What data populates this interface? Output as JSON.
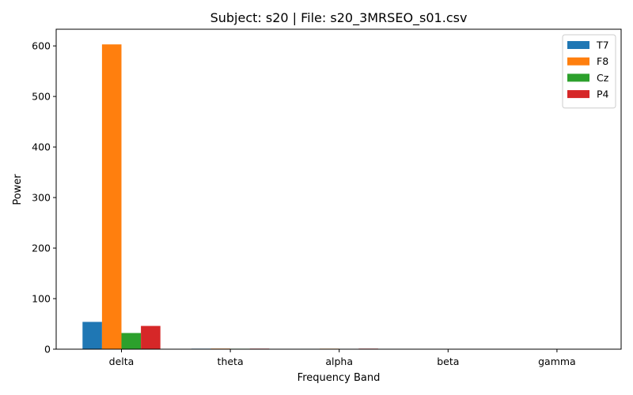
{
  "chart_data": {
    "type": "bar",
    "title": "Subject: s20 | File: s20_3MRSEO_s01.csv",
    "xlabel": "Frequency Band",
    "ylabel": "Power",
    "categories": [
      "delta",
      "theta",
      "alpha",
      "beta",
      "gamma"
    ],
    "ylim": [
      0,
      633
    ],
    "yticks": [
      0,
      100,
      200,
      300,
      400,
      500,
      600
    ],
    "grid": false,
    "legend_position": "top-right",
    "series": [
      {
        "name": "T7",
        "color": "#1f77b4",
        "values": [
          54,
          1.0,
          0.8,
          0.2,
          0.1
        ]
      },
      {
        "name": "F8",
        "color": "#ff7f0e",
        "values": [
          603,
          1.2,
          1.0,
          0.3,
          0.1
        ]
      },
      {
        "name": "Cz",
        "color": "#2ca02c",
        "values": [
          32,
          0.9,
          0.5,
          0.2,
          0.1
        ]
      },
      {
        "name": "P4",
        "color": "#d62728",
        "values": [
          46,
          1.1,
          1.1,
          0.2,
          0.1
        ]
      }
    ]
  }
}
